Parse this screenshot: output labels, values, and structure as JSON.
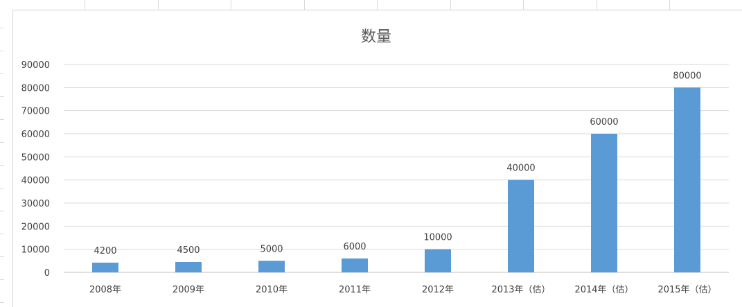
{
  "chart_data": {
    "type": "bar",
    "title": "数量",
    "xlabel": "",
    "ylabel": "",
    "categories": [
      "2008年",
      "2009年",
      "2010年",
      "2011年",
      "2012年",
      "2013年（估）",
      "2014年（估）",
      "2015年（估）"
    ],
    "values": [
      4200,
      4500,
      5000,
      6000,
      10000,
      40000,
      60000,
      80000
    ],
    "ylim": [
      0,
      90000
    ],
    "yticks": [
      "0",
      "10000",
      "20000",
      "30000",
      "40000",
      "50000",
      "60000",
      "70000",
      "80000",
      "90000"
    ],
    "grid": true,
    "legend": "none",
    "bar_color": "#5b9bd5",
    "data_labels": [
      "4200",
      "4500",
      "5000",
      "6000",
      "10000",
      "40000",
      "60000",
      "80000"
    ]
  }
}
